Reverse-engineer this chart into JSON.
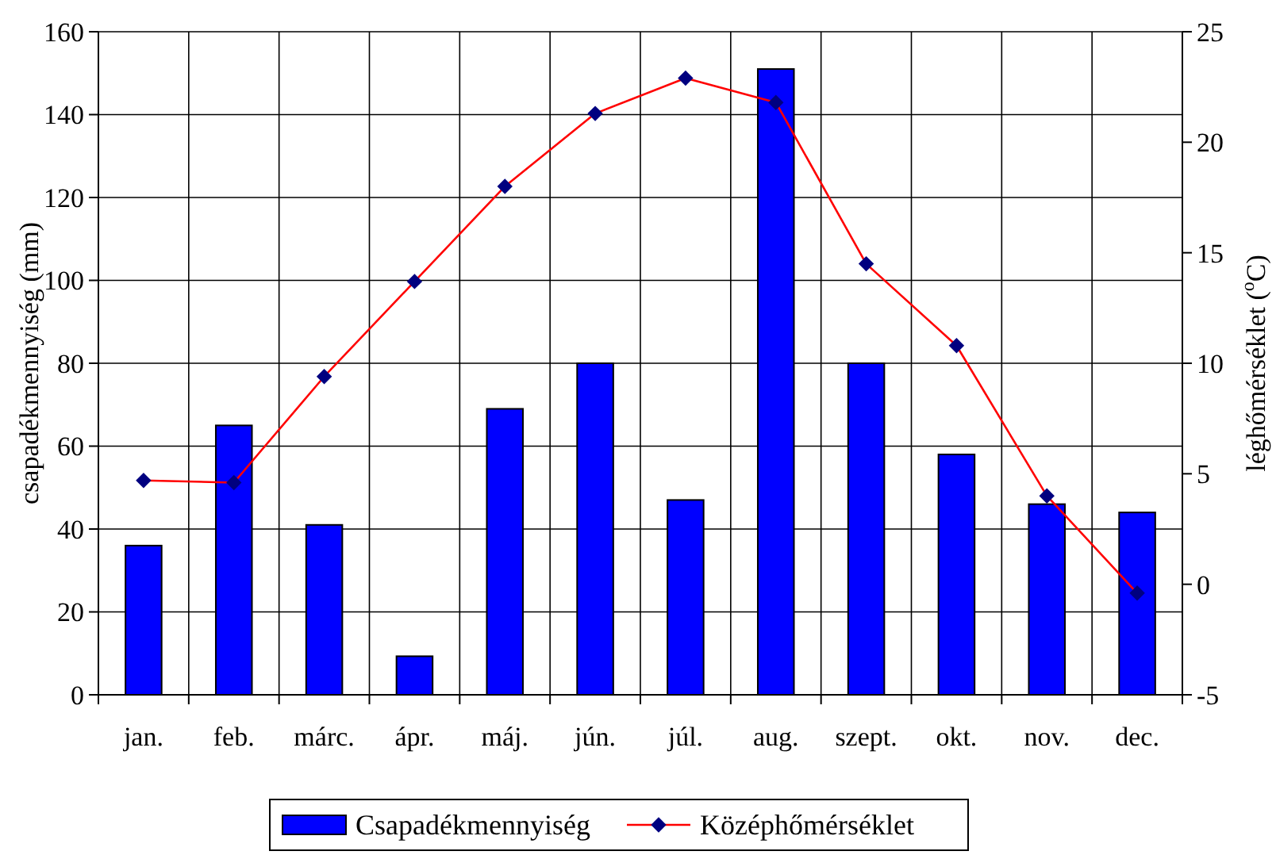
{
  "chart_data": {
    "type": "bar",
    "ylabel": "csapadékmennyiség (mm)",
    "y2label": "léghőmérséklet ($^{o}$C)",
    "categories": [
      "jan.",
      "feb.",
      "márc.",
      "ápr.",
      "máj.",
      "jún.",
      "júl.",
      "aug.",
      "szept.",
      "okt.",
      "nov.",
      "dec."
    ],
    "series": [
      {
        "name": "Csapadékmennyiség",
        "color": "#0000ff",
        "values": [
          36,
          65,
          41,
          9.3,
          69,
          80,
          47,
          151,
          80,
          58,
          46,
          44
        ]
      },
      {
        "name": "Középhőmérséklet",
        "type": "line",
        "axis": "y2",
        "color": "#ff0000",
        "marker": "diamond",
        "values": [
          4.7,
          4.6,
          9.4,
          13.7,
          18.0,
          21.3,
          22.9,
          21.8,
          14.5,
          10.8,
          4.0,
          -0.4
        ]
      }
    ],
    "ylim": [
      0,
      160
    ],
    "yticks": [
      0,
      20,
      40,
      60,
      80,
      100,
      120,
      140,
      160
    ],
    "y2lim": [
      -5,
      25
    ],
    "y2ticks": [
      -5,
      0,
      5,
      10,
      15,
      20,
      25
    ],
    "grid": true,
    "legend": "bottom"
  }
}
